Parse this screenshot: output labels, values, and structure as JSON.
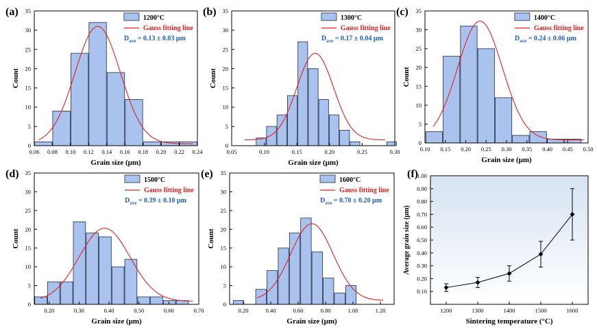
{
  "colors": {
    "bar_fill": "#a9c3ee",
    "bar_stroke": "#1f2a44",
    "fit_line": "#e02020",
    "legend_text_blue": "#1a5fb4",
    "axis": "#000000",
    "panel_f_gradient_top": "#d6e3f3",
    "panel_f_gradient_bottom": "#ffffff"
  },
  "chart_data": [
    {
      "panel": "(a)",
      "type": "bar",
      "legend_label": "1200°C",
      "fit_label": "Gauss fitting line",
      "dave_label": "D",
      "dave_sub": "ave",
      "dave_value": " = 0.13 ± 0.03 μm",
      "xlabel": "Grain size (μm)",
      "ylabel": "Count",
      "xlim": [
        0.06,
        0.24
      ],
      "ylim": [
        0,
        35
      ],
      "xticks": [
        0.06,
        0.08,
        0.1,
        0.12,
        0.14,
        0.16,
        0.18,
        0.2,
        0.22,
        0.24
      ],
      "xtick_labels": [
        "0.06",
        "0.08",
        "0.10",
        "0.12",
        "0.14",
        "0.16",
        "0.18",
        "0.20",
        "0.22",
        "0.24"
      ],
      "yticks": [
        0,
        5,
        10,
        15,
        20,
        25,
        30,
        35
      ],
      "ytick_labels": [
        "0",
        "5",
        "10",
        "15",
        "20",
        "25",
        "30",
        "35"
      ],
      "bin_width": 0.02,
      "bins": [
        0.07,
        0.09,
        0.11,
        0.13,
        0.15,
        0.17,
        0.19,
        0.21,
        0.23
      ],
      "values": [
        1,
        9,
        24,
        32,
        19,
        12,
        1,
        1,
        1
      ],
      "fit": {
        "mean": 0.13,
        "sigma": 0.025,
        "amplitude": 30.5,
        "baseline": 0.5,
        "x_range": [
          0.065,
          0.235
        ]
      }
    },
    {
      "panel": "(b)",
      "type": "bar",
      "legend_label": "1300°C",
      "fit_label": "Gauss fitting line",
      "dave_label": "D",
      "dave_sub": "ave",
      "dave_value": " = 0.17 ± 0.04 μm",
      "xlabel": "Grain size (μm)",
      "ylabel": "Count",
      "xlim": [
        0.05,
        0.3
      ],
      "ylim": [
        0,
        35
      ],
      "xticks": [
        0.05,
        0.1,
        0.15,
        0.2,
        0.25,
        0.3
      ],
      "xtick_labels": [
        "0.05",
        "0.10",
        "0.15",
        "0.20",
        "0.25",
        "0.30"
      ],
      "yticks": [
        0,
        5,
        10,
        15,
        20,
        25,
        30,
        35
      ],
      "ytick_labels": [
        "0",
        "5",
        "10",
        "15",
        "20",
        "25",
        "30",
        "35"
      ],
      "bin_width": 0.016,
      "bins": [
        0.095,
        0.111,
        0.127,
        0.143,
        0.159,
        0.175,
        0.191,
        0.207,
        0.223,
        0.239,
        0.295
      ],
      "values": [
        2,
        5,
        8,
        13,
        27,
        20,
        12,
        8,
        4,
        1,
        1
      ],
      "fit": {
        "mean": 0.178,
        "sigma": 0.028,
        "amplitude": 22.5,
        "baseline": 1.5,
        "x_range": [
          0.07,
          0.285
        ]
      }
    },
    {
      "panel": "(c)",
      "type": "bar",
      "legend_label": "1400°C",
      "fit_label": "Gauss fitting line",
      "dave_label": "D",
      "dave_sub": "ave",
      "dave_value": " = 0.24 ± 0.06 μm",
      "xlabel": "Grain size (μm)",
      "ylabel": "Count",
      "xlim": [
        0.1,
        0.5
      ],
      "ylim": [
        0,
        35
      ],
      "xticks": [
        0.1,
        0.15,
        0.2,
        0.25,
        0.3,
        0.35,
        0.4,
        0.45,
        0.5
      ],
      "xtick_labels": [
        "0.10",
        "0.15",
        "0.20",
        "0.25",
        "0.30",
        "0.35",
        "0.40",
        "0.45",
        "0.50"
      ],
      "yticks": [
        0,
        5,
        10,
        15,
        20,
        25,
        30,
        35
      ],
      "ytick_labels": [
        "0",
        "5",
        "10",
        "15",
        "20",
        "25",
        "30",
        "35"
      ],
      "bin_width": 0.0425,
      "bins": [
        0.1225,
        0.165,
        0.2075,
        0.25,
        0.2925,
        0.335,
        0.3775,
        0.42,
        0.4625
      ],
      "values": [
        3,
        23,
        31,
        25,
        12,
        2,
        3,
        1,
        1
      ],
      "fit": {
        "mean": 0.235,
        "sigma": 0.055,
        "amplitude": 31.5,
        "baseline": 0.8,
        "x_range": [
          0.12,
          0.49
        ]
      }
    },
    {
      "panel": "(d)",
      "type": "bar",
      "legend_label": "1500°C",
      "fit_label": "Gauss fitting line",
      "dave_label": "D",
      "dave_sub": "ave",
      "dave_value": " = 0.39 ± 0.10 μm",
      "xlabel": "Grain size (μm)",
      "ylabel": "Count",
      "xlim": [
        0.15,
        0.7
      ],
      "ylim": [
        0,
        35
      ],
      "xticks": [
        0.2,
        0.3,
        0.4,
        0.5,
        0.6,
        0.7
      ],
      "xtick_labels": [
        "0.20",
        "0.30",
        "0.40",
        "0.50",
        "0.60",
        "0.70"
      ],
      "yticks": [
        0,
        5,
        10,
        15,
        20,
        25,
        30,
        35
      ],
      "ytick_labels": [
        "0",
        "5",
        "10",
        "15",
        "20",
        "25",
        "30",
        "35"
      ],
      "bin_width": 0.043,
      "bins": [
        0.172,
        0.215,
        0.258,
        0.301,
        0.344,
        0.387,
        0.43,
        0.473,
        0.516,
        0.559,
        0.602,
        0.645,
        0.688
      ],
      "values": [
        2,
        6,
        6,
        22,
        19,
        18,
        10,
        12,
        2,
        2,
        1,
        1,
        0
      ],
      "fit": {
        "mean": 0.385,
        "sigma": 0.085,
        "amplitude": 19.5,
        "baseline": 0.8,
        "x_range": [
          0.17,
          0.68
        ]
      }
    },
    {
      "panel": "(e)",
      "type": "bar",
      "legend_label": "1600°C",
      "fit_label": "Gauss fitting line",
      "dave_label": "D",
      "dave_sub": "ave",
      "dave_value": " = 0.70 ± 0.20 μm",
      "xlabel": "Grain size (μm)",
      "ylabel": "Count",
      "xlim": [
        0.1,
        1.3
      ],
      "ylim": [
        0,
        35
      ],
      "xticks": [
        0.2,
        0.4,
        0.6,
        0.8,
        1.0,
        1.2
      ],
      "xtick_labels": [
        "0.20",
        "0.40",
        "0.60",
        "0.80",
        "1.00",
        "1.20"
      ],
      "yticks": [
        0,
        5,
        10,
        15,
        20,
        25,
        30,
        35
      ],
      "ytick_labels": [
        "0",
        "5",
        "10",
        "15",
        "20",
        "25",
        "30",
        "35"
      ],
      "bin_width": 0.082,
      "bins": [
        0.165,
        0.329,
        0.411,
        0.493,
        0.575,
        0.657,
        0.739,
        0.821,
        0.903,
        0.985,
        1.067,
        1.149
      ],
      "values": [
        1,
        4,
        9,
        15,
        19,
        23,
        14,
        7,
        3,
        5,
        0,
        0
      ],
      "fit": {
        "mean": 0.7,
        "sigma": 0.155,
        "amplitude": 20.5,
        "baseline": 1.0,
        "x_range": [
          0.3,
          1.22
        ]
      }
    },
    {
      "panel": "(f)",
      "type": "line",
      "xlabel": "Sintering temperature (°C)",
      "ylabel": "Average grain size (μm)",
      "categories": [
        "1200",
        "1300",
        "1400",
        "1500",
        "1600"
      ],
      "xlim": [
        1150,
        1650
      ],
      "ylim": [
        0.0,
        1.0
      ],
      "yticks": [
        0.1,
        0.2,
        0.3,
        0.4,
        0.5,
        0.6,
        0.7,
        0.8,
        0.9,
        1.0
      ],
      "ytick_labels": [
        "0.10",
        "0.20",
        "0.30",
        "0.40",
        "0.50",
        "0.60",
        "0.70",
        "0.80",
        "0.90",
        "1.00"
      ],
      "x": [
        1200,
        1300,
        1400,
        1500,
        1600
      ],
      "values": [
        0.13,
        0.17,
        0.24,
        0.39,
        0.7
      ],
      "errors": [
        0.03,
        0.04,
        0.06,
        0.1,
        0.2
      ]
    }
  ]
}
